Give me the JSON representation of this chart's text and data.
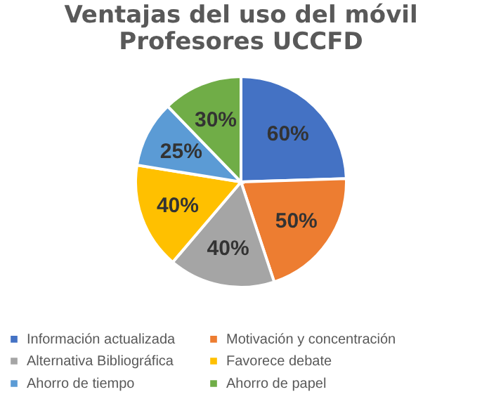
{
  "chart_data": {
    "type": "pie",
    "title": [
      "Ventajas del uso del móvil",
      "Profesores UCCFD"
    ],
    "categories": [
      "Información actualizada",
      "Motivación y concentración",
      "Alternativa Bibliográfica",
      "Favorece debate",
      "Ahorro de tiempo",
      "Ahorro de papel"
    ],
    "values": [
      60,
      50,
      40,
      40,
      25,
      30
    ],
    "value_labels": [
      "60%",
      "50%",
      "40%",
      "40%",
      "25%",
      "30%"
    ],
    "colors": [
      "#4472c4",
      "#ed7d31",
      "#a5a5a5",
      "#ffc000",
      "#5b9bd5",
      "#70ad47"
    ],
    "legend": "bottom"
  }
}
